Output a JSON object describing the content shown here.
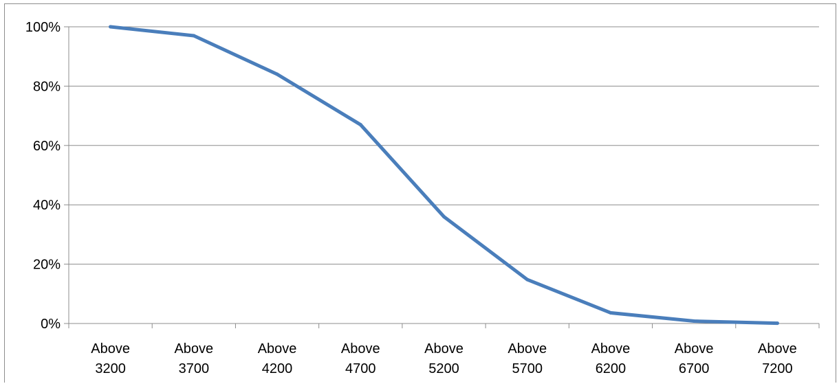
{
  "chart_data": {
    "type": "line",
    "title": "",
    "xlabel": "",
    "ylabel": "",
    "categories": [
      [
        "Above",
        "3200"
      ],
      [
        "Above",
        "3700"
      ],
      [
        "Above",
        "4200"
      ],
      [
        "Above",
        "4700"
      ],
      [
        "Above",
        "5200"
      ],
      [
        "Above",
        "5700"
      ],
      [
        "Above",
        "6200"
      ],
      [
        "Above",
        "6700"
      ],
      [
        "Above",
        "7200"
      ]
    ],
    "series": [
      {
        "values": [
          100,
          97,
          84,
          67,
          36,
          14.8,
          3.6,
          0.8,
          0.1
        ],
        "color": "#4a7ebb"
      }
    ],
    "y_ticks": [
      "0%",
      "20%",
      "40%",
      "60%",
      "80%",
      "100%"
    ],
    "ylim": [
      0,
      100
    ],
    "grid": true,
    "legend": "none",
    "colors": {
      "gridline": "#8c8c8c",
      "axis": "#8c8c8c",
      "frame": "#8c8c8c"
    }
  }
}
